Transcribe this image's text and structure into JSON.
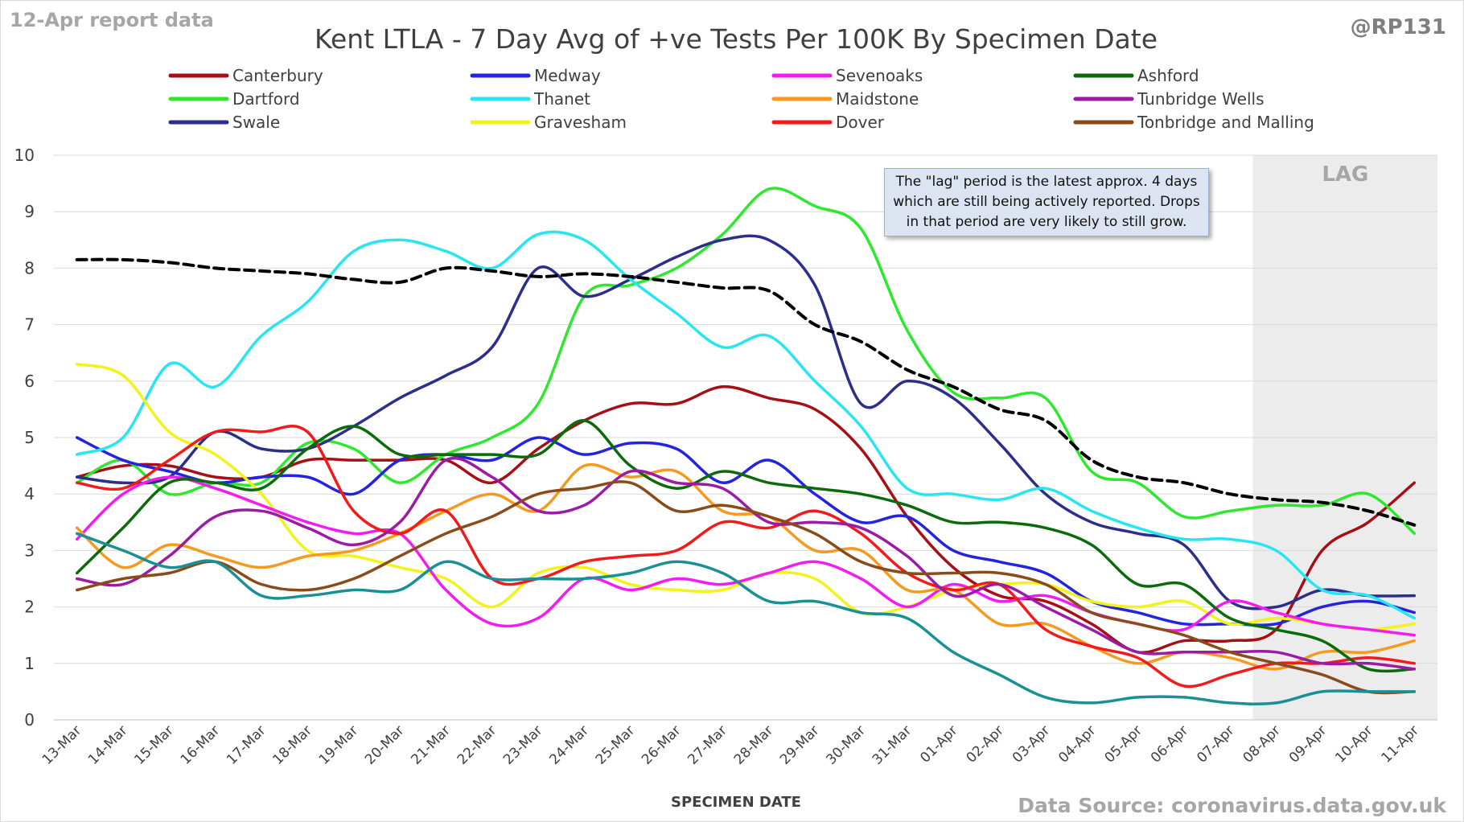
{
  "report_label": "12-Apr report data",
  "handle": "@RP131",
  "source": "Data Source: coronavirus.data.gov.uk",
  "lag_label": "LAG",
  "note": "The \"lag\" period is the latest approx. 4 days which are still being actively reported. Drops in that period are very likely to still grow.",
  "chart_data": {
    "type": "line",
    "title": "Kent  LTLA - 7 Day Avg of +ve Tests Per 100K By Specimen Date",
    "xlabel": "SPECIMEN DATE",
    "ylabel": "",
    "ylim": [
      0,
      10
    ],
    "yticks": [
      0,
      1,
      2,
      3,
      4,
      5,
      6,
      7,
      8,
      9,
      10
    ],
    "grid": true,
    "legend_position": "top",
    "lag_start": "08-Apr",
    "categories": [
      "13-Mar",
      "14-Mar",
      "15-Mar",
      "16-Mar",
      "17-Mar",
      "18-Mar",
      "19-Mar",
      "20-Mar",
      "21-Mar",
      "22-Mar",
      "23-Mar",
      "24-Mar",
      "25-Mar",
      "26-Mar",
      "27-Mar",
      "28-Mar",
      "29-Mar",
      "30-Mar",
      "31-Mar",
      "01-Apr",
      "02-Apr",
      "03-Apr",
      "04-Apr",
      "05-Apr",
      "06-Apr",
      "07-Apr",
      "08-Apr",
      "09-Apr",
      "10-Apr",
      "11-Apr"
    ],
    "series": [
      {
        "name": "Canterbury",
        "color": "#a50f15",
        "values": [
          4.3,
          4.5,
          4.5,
          4.3,
          4.3,
          4.6,
          4.6,
          4.6,
          4.6,
          4.2,
          4.8,
          5.3,
          5.6,
          5.6,
          5.9,
          5.7,
          5.5,
          4.8,
          3.6,
          2.7,
          2.2,
          2.1,
          1.7,
          1.2,
          1.4,
          1.4,
          1.6,
          3.0,
          3.5,
          4.2
        ]
      },
      {
        "name": "Dartford",
        "color": "#2ee82e",
        "values": [
          4.2,
          4.6,
          4.0,
          4.2,
          4.2,
          4.9,
          4.8,
          4.2,
          4.7,
          5.0,
          5.6,
          7.5,
          7.7,
          8.0,
          8.6,
          9.4,
          9.1,
          8.7,
          6.9,
          5.8,
          5.7,
          5.7,
          4.4,
          4.2,
          3.6,
          3.7,
          3.8,
          3.8,
          4.0,
          3.3
        ]
      },
      {
        "name": "Swale",
        "color": "#2b2f8a",
        "values": [
          4.3,
          4.2,
          4.3,
          5.1,
          4.8,
          4.8,
          5.2,
          5.7,
          6.1,
          6.6,
          8.0,
          7.5,
          7.8,
          8.2,
          8.5,
          8.5,
          7.7,
          5.6,
          6.0,
          5.7,
          4.9,
          4.0,
          3.5,
          3.3,
          3.1,
          2.1,
          2.0,
          2.3,
          2.2,
          2.2
        ]
      },
      {
        "name": "Medway",
        "color": "#2323e0",
        "values": [
          5.0,
          4.6,
          4.4,
          4.2,
          4.3,
          4.3,
          4.0,
          4.6,
          4.7,
          4.6,
          5.0,
          4.7,
          4.9,
          4.8,
          4.2,
          4.6,
          4.0,
          3.5,
          3.6,
          3.0,
          2.8,
          2.6,
          2.1,
          1.9,
          1.7,
          1.7,
          1.7,
          2.0,
          2.1,
          1.9
        ]
      },
      {
        "name": "Thanet",
        "color": "#27e6f2",
        "values": [
          4.7,
          5.0,
          6.3,
          5.9,
          6.8,
          7.4,
          8.3,
          8.5,
          8.3,
          8.0,
          8.6,
          8.5,
          7.8,
          7.2,
          6.6,
          6.8,
          6.0,
          5.2,
          4.1,
          4.0,
          3.9,
          4.1,
          3.7,
          3.4,
          3.2,
          3.2,
          3.0,
          2.3,
          2.2,
          1.8
        ]
      },
      {
        "name": "Gravesham",
        "color": "#f2f21c",
        "values": [
          6.3,
          6.1,
          5.1,
          4.7,
          4.0,
          3.0,
          2.9,
          2.7,
          2.5,
          2.0,
          2.6,
          2.7,
          2.4,
          2.3,
          2.3,
          2.6,
          2.5,
          1.9,
          2.0,
          2.3,
          2.4,
          2.4,
          2.1,
          2.0,
          2.1,
          1.7,
          1.8,
          1.7,
          1.6,
          1.7
        ]
      },
      {
        "name": "Sevenoaks",
        "color": "#f21cf2",
        "values": [
          3.2,
          4.0,
          4.3,
          4.1,
          3.8,
          3.5,
          3.3,
          3.3,
          2.3,
          1.7,
          1.8,
          2.5,
          2.3,
          2.5,
          2.4,
          2.6,
          2.8,
          2.5,
          2.0,
          2.4,
          2.1,
          2.2,
          1.9,
          1.7,
          1.6,
          2.1,
          1.9,
          1.7,
          1.6,
          1.5
        ]
      },
      {
        "name": "Maidstone",
        "color": "#f59a1f",
        "values": [
          3.4,
          2.7,
          3.1,
          2.9,
          2.7,
          2.9,
          3.0,
          3.3,
          3.7,
          4.0,
          3.7,
          4.5,
          4.3,
          4.4,
          3.7,
          3.6,
          3.0,
          3.0,
          2.3,
          2.3,
          1.7,
          1.7,
          1.3,
          1.0,
          1.2,
          1.1,
          0.9,
          1.2,
          1.2,
          1.4
        ]
      },
      {
        "name": "Dover",
        "color": "#f21a1a",
        "values": [
          4.2,
          4.1,
          4.6,
          5.1,
          5.1,
          5.1,
          3.7,
          3.3,
          3.7,
          2.5,
          2.5,
          2.8,
          2.9,
          3.0,
          3.5,
          3.4,
          3.7,
          3.3,
          2.6,
          2.3,
          2.4,
          1.6,
          1.3,
          1.1,
          0.6,
          0.8,
          1.0,
          1.0,
          1.1,
          1.0
        ]
      },
      {
        "name": "Ashford",
        "color": "#0b6b0b",
        "values": [
          2.6,
          3.4,
          4.2,
          4.2,
          4.1,
          4.8,
          5.2,
          4.7,
          4.7,
          4.7,
          4.7,
          5.3,
          4.5,
          4.1,
          4.4,
          4.2,
          4.1,
          4.0,
          3.8,
          3.5,
          3.5,
          3.4,
          3.1,
          2.4,
          2.4,
          1.8,
          1.6,
          1.4,
          0.9,
          0.9
        ]
      },
      {
        "name": "Tunbridge Wells",
        "color": "#9b1aa6",
        "values": [
          2.5,
          2.4,
          2.9,
          3.6,
          3.7,
          3.4,
          3.1,
          3.5,
          4.6,
          4.3,
          3.7,
          3.8,
          4.4,
          4.2,
          4.1,
          3.5,
          3.5,
          3.4,
          2.9,
          2.2,
          2.4,
          2.0,
          1.6,
          1.2,
          1.2,
          1.2,
          1.2,
          1.0,
          1.0,
          0.9
        ]
      },
      {
        "name": "Tonbridge and Malling",
        "color": "#8a4b1a",
        "values": [
          2.3,
          2.5,
          2.6,
          2.8,
          2.4,
          2.3,
          2.5,
          2.9,
          3.3,
          3.6,
          4.0,
          4.1,
          4.2,
          3.7,
          3.8,
          3.6,
          3.3,
          2.8,
          2.6,
          2.6,
          2.6,
          2.4,
          1.9,
          1.7,
          1.5,
          1.2,
          1.0,
          0.8,
          0.5,
          0.5
        ]
      },
      {
        "name": "",
        "color": "#1a8f96",
        "values": [
          3.3,
          3.0,
          2.7,
          2.8,
          2.2,
          2.2,
          2.3,
          2.3,
          2.8,
          2.5,
          2.5,
          2.5,
          2.6,
          2.8,
          2.6,
          2.1,
          2.1,
          1.9,
          1.8,
          1.2,
          0.8,
          0.4,
          0.3,
          0.4,
          0.4,
          0.3,
          0.3,
          0.5,
          0.5,
          0.5
        ]
      },
      {
        "name": "",
        "color": "#000000",
        "dashed": true,
        "values": [
          8.15,
          8.15,
          8.1,
          8.0,
          7.95,
          7.9,
          7.8,
          7.75,
          8.0,
          7.95,
          7.85,
          7.9,
          7.85,
          7.75,
          7.65,
          7.6,
          7.0,
          6.7,
          6.2,
          5.9,
          5.5,
          5.3,
          4.6,
          4.3,
          4.2,
          4.0,
          3.9,
          3.85,
          3.7,
          3.45
        ]
      }
    ]
  }
}
